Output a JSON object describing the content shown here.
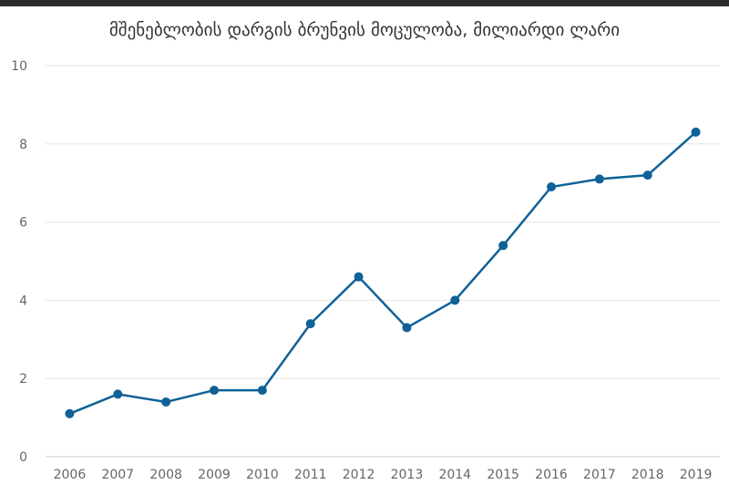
{
  "chart_data": {
    "type": "line",
    "title": "მშენებლობის დარგის ბრუნვის მოცულობა, მილიარდი ლარი",
    "xlabel": "",
    "ylabel": "",
    "categories": [
      "2006",
      "2007",
      "2008",
      "2009",
      "2010",
      "2011",
      "2012",
      "2013",
      "2014",
      "2015",
      "2016",
      "2017",
      "2018",
      "2019"
    ],
    "series": [
      {
        "values": [
          1.1,
          1.6,
          1.4,
          1.7,
          1.7,
          3.4,
          4.6,
          3.3,
          4.0,
          5.4,
          6.9,
          7.1,
          7.2,
          8.3
        ]
      }
    ],
    "ylim": [
      0,
      10
    ],
    "yticks": [
      0,
      2,
      4,
      6,
      8,
      10
    ],
    "grid": true,
    "legend": "none",
    "colors": {
      "line": "#0f6197",
      "grid": "#e6e6e6",
      "axis": "#cccccc",
      "text": "#666666"
    }
  }
}
